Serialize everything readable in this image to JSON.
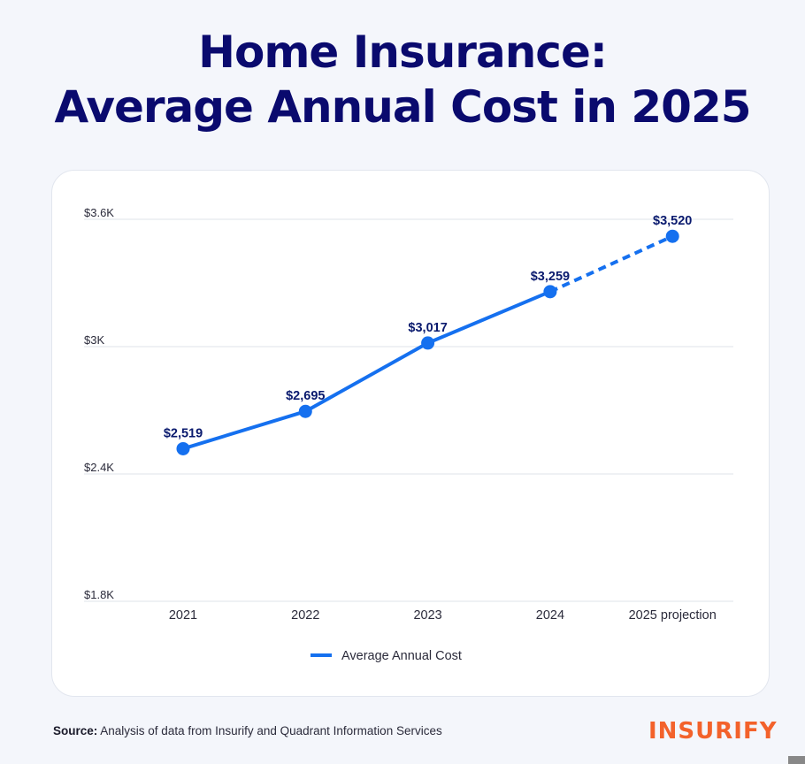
{
  "header": {
    "title_line1": "Home Insurance:",
    "title_line2": "Average Annual Cost in 2025"
  },
  "chart_data": {
    "type": "line",
    "categories": [
      "2021",
      "2022",
      "2023",
      "2024",
      "2025 projection"
    ],
    "series": [
      {
        "name": "Average Annual Cost",
        "values": [
          2519,
          2695,
          3017,
          3259,
          3520
        ],
        "labels": [
          "$2,519",
          "$2,695",
          "$3,017",
          "$3,259",
          "$3,520"
        ],
        "projected_from_index": 3
      }
    ],
    "ylim": [
      1800,
      3600
    ],
    "yticks": [
      {
        "value": 3600,
        "label": "$3.6K"
      },
      {
        "value": 3000,
        "label": "$3K"
      },
      {
        "value": 2400,
        "label": "$2.4K"
      },
      {
        "value": 1800,
        "label": "$1.8K"
      }
    ],
    "grid": true,
    "legend_position": "bottom-center",
    "colors": {
      "line": "#1570ef",
      "label": "#0a1a6e"
    }
  },
  "footer": {
    "source_label": "Source:",
    "source_text": "Analysis of data from Insurify and Quadrant Information Services",
    "logo_text": "INSURIFY"
  }
}
